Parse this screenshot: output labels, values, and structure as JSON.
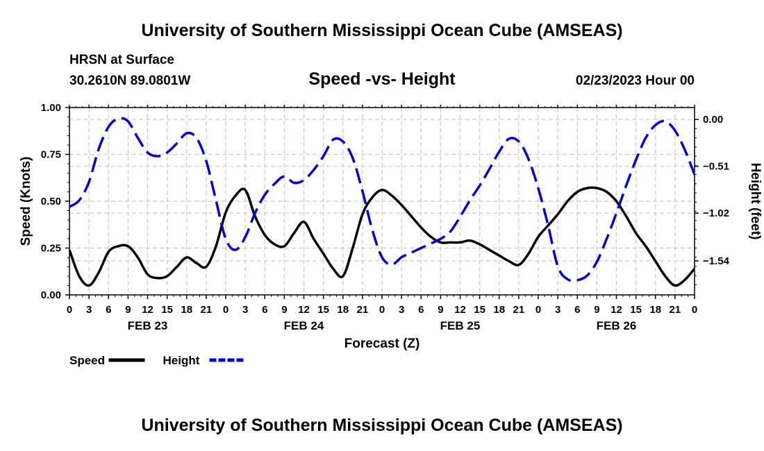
{
  "header": {
    "title": "University of Southern Mississippi Ocean Cube (AMSEAS)",
    "location": "HRSN at Surface",
    "coordinates": "30.2610N  89.0801W",
    "subtitle": "Speed -vs- Height",
    "datetime": "02/23/2023 Hour 00"
  },
  "footer": {
    "title": "University of Southern Mississippi Ocean Cube (AMSEAS)"
  },
  "chart_data": {
    "type": "line",
    "title": "Speed -vs- Height",
    "xlabel": "Forecast (Z)",
    "ylabel": "Speed (Knots)",
    "y2label": "Height (feet)",
    "x_ticks": [
      "0",
      "3",
      "6",
      "9",
      "12",
      "15",
      "18",
      "21",
      "0",
      "3",
      "6",
      "9",
      "12",
      "15",
      "18",
      "21",
      "0",
      "3",
      "6",
      "9",
      "12",
      "15",
      "18",
      "21",
      "0",
      "3",
      "6",
      "9",
      "12",
      "15",
      "18",
      "21",
      "0"
    ],
    "x_tick_hours": [
      0,
      3,
      6,
      9,
      12,
      15,
      18,
      21,
      24,
      27,
      30,
      33,
      36,
      39,
      42,
      45,
      48,
      51,
      54,
      57,
      60,
      63,
      66,
      69,
      72,
      75,
      78,
      81,
      84,
      87,
      90,
      93,
      96
    ],
    "day_labels": [
      {
        "label": "FEB 23",
        "hour": 12
      },
      {
        "label": "FEB 24",
        "hour": 36
      },
      {
        "label": "FEB 25",
        "hour": 60
      },
      {
        "label": "FEB 26",
        "hour": 84
      }
    ],
    "xlim": [
      0,
      96
    ],
    "ylim": [
      0,
      1
    ],
    "y_ticks": [
      {
        "value": 0,
        "label": "0.00"
      },
      {
        "value": 0.25,
        "label": "0.25"
      },
      {
        "value": 0.5,
        "label": "0.50"
      },
      {
        "value": 0.75,
        "label": "0.75"
      },
      {
        "value": 1,
        "label": "1.00"
      }
    ],
    "y2lim": [
      -1.91,
      0.13
    ],
    "y2_ticks": [
      {
        "value": 0.0,
        "label": "0.00"
      },
      {
        "value": -0.51,
        "label": "−0.51"
      },
      {
        "value": -1.02,
        "label": "−1.02"
      },
      {
        "value": -1.54,
        "label": "−1.54"
      }
    ],
    "grid": true,
    "series": [
      {
        "name": "Speed",
        "axis": "left",
        "color": "#000000",
        "style": "solid",
        "x": [
          0,
          1.5,
          3,
          4.5,
          6,
          7.5,
          9,
          10.5,
          12,
          13.5,
          15,
          16.5,
          18,
          19.5,
          21,
          22.5,
          24,
          25.5,
          27,
          28.5,
          30,
          31.5,
          33,
          34.5,
          36,
          37.5,
          39,
          40.5,
          42,
          43.5,
          45,
          46.5,
          48,
          49.5,
          51,
          52.5,
          54,
          55.5,
          57,
          58.5,
          60,
          61.5,
          63,
          64.5,
          66,
          67.5,
          69,
          70.5,
          72,
          73.5,
          75,
          76.5,
          78,
          79.5,
          81,
          82.5,
          84,
          85.5,
          87,
          88.5,
          90,
          91.5,
          93,
          94.5,
          96
        ],
        "values": [
          0.24,
          0.1,
          0.05,
          0.12,
          0.23,
          0.26,
          0.26,
          0.2,
          0.11,
          0.09,
          0.1,
          0.15,
          0.2,
          0.17,
          0.15,
          0.26,
          0.44,
          0.53,
          0.56,
          0.42,
          0.32,
          0.27,
          0.26,
          0.33,
          0.39,
          0.3,
          0.22,
          0.14,
          0.1,
          0.25,
          0.43,
          0.52,
          0.56,
          0.53,
          0.48,
          0.42,
          0.36,
          0.31,
          0.28,
          0.28,
          0.28,
          0.29,
          0.27,
          0.24,
          0.21,
          0.18,
          0.16,
          0.22,
          0.31,
          0.37,
          0.43,
          0.5,
          0.55,
          0.57,
          0.57,
          0.55,
          0.5,
          0.42,
          0.33,
          0.26,
          0.18,
          0.1,
          0.05,
          0.08,
          0.14
        ]
      },
      {
        "name": "Height",
        "axis": "right",
        "color": "#0000cc",
        "style": "dashed",
        "x": [
          0,
          1.5,
          3,
          4.5,
          6,
          7.5,
          9,
          10.5,
          12,
          13.5,
          15,
          16.5,
          18,
          19.5,
          21,
          22.5,
          24,
          25.5,
          27,
          28.5,
          30,
          31.5,
          33,
          34.5,
          36,
          37.5,
          39,
          40.5,
          42,
          43.5,
          45,
          46.5,
          48,
          49.5,
          51,
          52.5,
          54,
          55.5,
          57,
          58.5,
          60,
          61.5,
          63,
          64.5,
          66,
          67.5,
          69,
          70.5,
          72,
          73.5,
          75,
          76.5,
          78,
          79.5,
          81,
          82.5,
          84,
          85.5,
          87,
          88.5,
          90,
          91.5,
          93,
          94.5,
          96
        ],
        "values": [
          -0.95,
          -0.88,
          -0.68,
          -0.32,
          -0.08,
          0.01,
          -0.02,
          -0.2,
          -0.36,
          -0.4,
          -0.36,
          -0.26,
          -0.15,
          -0.2,
          -0.45,
          -0.88,
          -1.3,
          -1.42,
          -1.28,
          -1.02,
          -0.82,
          -0.7,
          -0.62,
          -0.69,
          -0.66,
          -0.55,
          -0.4,
          -0.22,
          -0.24,
          -0.42,
          -0.78,
          -1.2,
          -1.5,
          -1.58,
          -1.5,
          -1.45,
          -1.4,
          -1.35,
          -1.3,
          -1.22,
          -1.06,
          -0.88,
          -0.72,
          -0.54,
          -0.35,
          -0.21,
          -0.24,
          -0.43,
          -0.75,
          -1.15,
          -1.6,
          -1.74,
          -1.75,
          -1.7,
          -1.55,
          -1.3,
          -1.02,
          -0.72,
          -0.44,
          -0.2,
          -0.06,
          -0.02,
          -0.12,
          -0.33,
          -0.6
        ]
      }
    ],
    "legend": [
      {
        "label": "Speed",
        "color": "#000000",
        "style": "solid"
      },
      {
        "label": "Height",
        "color": "#0000cc",
        "style": "dashed"
      }
    ],
    "legend_position": "bottom-left"
  }
}
